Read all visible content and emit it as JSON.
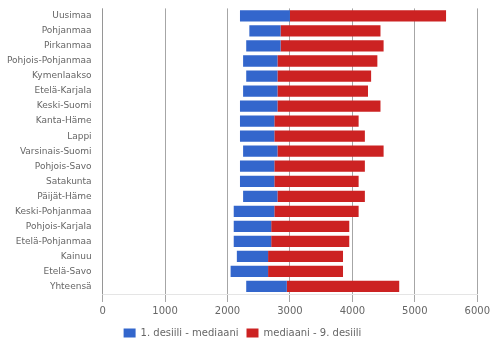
{
  "chart_data": {
    "type": "bar",
    "orientation": "horizontal",
    "categories": [
      "Uusimaa",
      "Pohjanmaa",
      "Pirkanmaa",
      "Pohjois-Pohjanmaa",
      "Kymenlaakso",
      "Etelä-Karjala",
      "Keski-Suomi",
      "Kanta-Häme",
      "Lappi",
      "Varsinais-Suomi",
      "Pohjois-Savo",
      "Satakunta",
      "Päijät-Häme",
      "Keski-Pohjanmaa",
      "Pohjois-Karjala",
      "Etelä-Pohjanmaa",
      "Kainuu",
      "Etelä-Savo",
      "Yhteensä"
    ],
    "series": [
      {
        "name": "1. desiili - mediaani",
        "color": "#3366CC",
        "values": [
          [
            2200,
            3000
          ],
          [
            2350,
            2850
          ],
          [
            2300,
            2850
          ],
          [
            2250,
            2800
          ],
          [
            2300,
            2800
          ],
          [
            2250,
            2800
          ],
          [
            2200,
            2800
          ],
          [
            2200,
            2750
          ],
          [
            2200,
            2750
          ],
          [
            2250,
            2800
          ],
          [
            2200,
            2750
          ],
          [
            2200,
            2750
          ],
          [
            2250,
            2800
          ],
          [
            2100,
            2750
          ],
          [
            2100,
            2700
          ],
          [
            2100,
            2700
          ],
          [
            2150,
            2650
          ],
          [
            2050,
            2650
          ],
          [
            2300,
            2950
          ]
        ]
      },
      {
        "name": "mediaani - 9. desiili",
        "color": "#CC2222",
        "values": [
          [
            3000,
            5500
          ],
          [
            2850,
            4450
          ],
          [
            2850,
            4500
          ],
          [
            2800,
            4400
          ],
          [
            2800,
            4300
          ],
          [
            2800,
            4250
          ],
          [
            2800,
            4450
          ],
          [
            2750,
            4100
          ],
          [
            2750,
            4200
          ],
          [
            2800,
            4500
          ],
          [
            2750,
            4200
          ],
          [
            2750,
            4100
          ],
          [
            2800,
            4200
          ],
          [
            2750,
            4100
          ],
          [
            2700,
            3950
          ],
          [
            2700,
            3950
          ],
          [
            2650,
            3850
          ],
          [
            2650,
            3850
          ],
          [
            2950,
            4750
          ]
        ]
      }
    ],
    "xlim": [
      0,
      6000
    ],
    "xticks": [
      0,
      1000,
      2000,
      3000,
      4000,
      5000,
      6000
    ],
    "grid": true,
    "legend": "bottom"
  }
}
